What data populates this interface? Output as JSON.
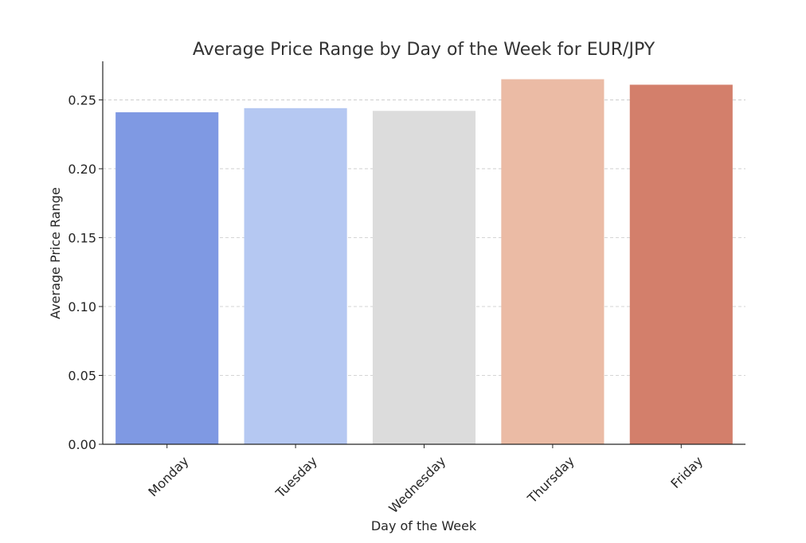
{
  "chart_data": {
    "type": "bar",
    "title": "Average Price Range by Day of the Week for EUR/JPY",
    "xlabel": "Day of the Week",
    "ylabel": "Average Price Range",
    "categories": [
      "Monday",
      "Tuesday",
      "Wednesday",
      "Thursday",
      "Friday"
    ],
    "values": [
      0.241,
      0.244,
      0.242,
      0.265,
      0.261
    ],
    "colors": [
      "#7f99e3",
      "#b5c8f2",
      "#dcdcdc",
      "#ebbba5",
      "#d37f6b"
    ],
    "ylim": [
      0,
      0.278
    ],
    "yticks": [
      "0.00",
      "0.05",
      "0.10",
      "0.15",
      "0.20",
      "0.25"
    ],
    "grid": "y-dashed",
    "legend": "none"
  }
}
